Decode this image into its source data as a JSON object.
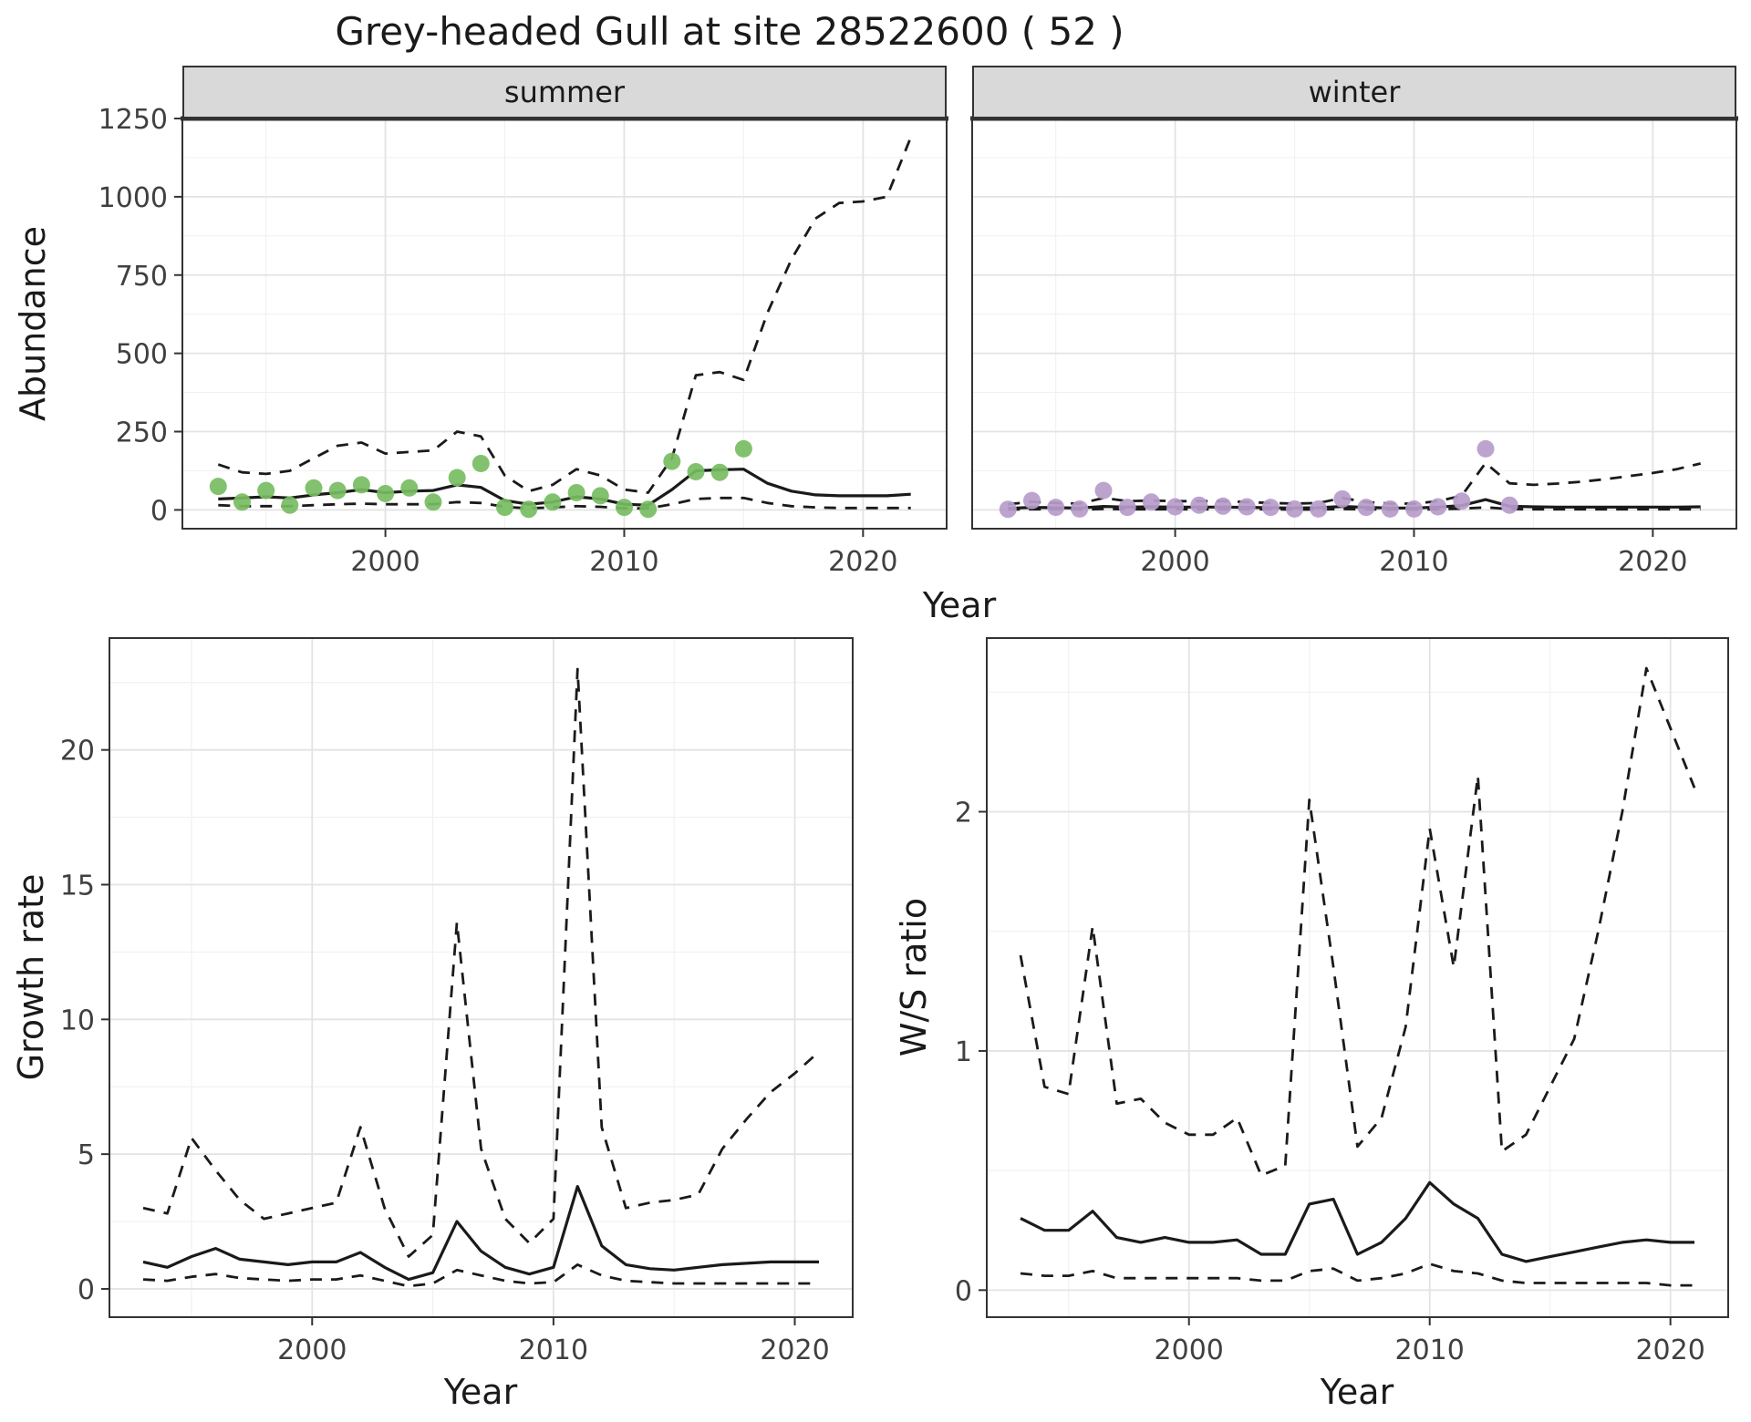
{
  "chart_data": {
    "type": "line",
    "title": "Grey-headed Gull at site 28522600 ( 52 )",
    "facets": [
      "summer",
      "winter"
    ],
    "xlabel": "Year",
    "legend": "none",
    "grid": "on",
    "panels": [
      {
        "id": "summer",
        "facet": "summer",
        "ylabel": "Abundance",
        "xlim": [
          1991.5,
          2023.5
        ],
        "ylim": [
          -60,
          1250
        ],
        "xticks": [
          2000,
          2010,
          2020
        ],
        "yticks": [
          0,
          250,
          500,
          750,
          1000,
          1250
        ],
        "x": [
          1993,
          1994,
          1995,
          1996,
          1997,
          1998,
          1999,
          2000,
          2001,
          2002,
          2003,
          2004,
          2005,
          2006,
          2007,
          2008,
          2009,
          2010,
          2011,
          2012,
          2013,
          2014,
          2015,
          2016,
          2017,
          2018,
          2019,
          2020,
          2021,
          2022
        ],
        "series": [
          {
            "name": "upper-ci",
            "style": "dashed",
            "values": [
              145,
              120,
              115,
              125,
              165,
              205,
              215,
              180,
              185,
              190,
              250,
              235,
              110,
              60,
              80,
              130,
              110,
              65,
              55,
              165,
              430,
              440,
              415,
              630,
              800,
              930,
              980,
              985,
              1000,
              1190
            ]
          },
          {
            "name": "fit",
            "style": "solid",
            "values": [
              35,
              38,
              42,
              38,
              48,
              55,
              65,
              55,
              60,
              62,
              80,
              72,
              30,
              18,
              25,
              42,
              35,
              18,
              15,
              65,
              125,
              128,
              130,
              85,
              60,
              48,
              45,
              45,
              45,
              50
            ]
          },
          {
            "name": "lower-ci",
            "style": "dashed",
            "values": [
              15,
              12,
              12,
              12,
              15,
              18,
              20,
              18,
              18,
              18,
              25,
              22,
              10,
              5,
              8,
              12,
              10,
              5,
              5,
              18,
              35,
              38,
              38,
              22,
              12,
              8,
              6,
              6,
              6,
              6
            ]
          }
        ],
        "points": {
          "name": "observed-counts",
          "color": "#77BD62",
          "x": [
            1993,
            1994,
            1995,
            1996,
            1997,
            1998,
            1999,
            2000,
            2001,
            2002,
            2003,
            2004,
            2005,
            2006,
            2007,
            2008,
            2009,
            2010,
            2011,
            2012,
            2013,
            2014,
            2015
          ],
          "y": [
            75,
            25,
            62,
            15,
            70,
            62,
            80,
            52,
            70,
            25,
            103,
            148,
            8,
            2,
            25,
            55,
            45,
            8,
            2,
            155,
            122,
            120,
            195
          ]
        }
      },
      {
        "id": "winter",
        "facet": "winter",
        "ylabel": "Abundance",
        "xlim": [
          1991.5,
          2023.5
        ],
        "ylim": [
          -60,
          1250
        ],
        "xticks": [
          2000,
          2010,
          2020
        ],
        "yticks": [
          0,
          250,
          500,
          750,
          1000,
          1250
        ],
        "x": [
          1993,
          1994,
          1995,
          1996,
          1997,
          1998,
          1999,
          2000,
          2001,
          2002,
          2003,
          2004,
          2005,
          2006,
          2007,
          2008,
          2009,
          2010,
          2011,
          2012,
          2013,
          2014,
          2015,
          2016,
          2017,
          2018,
          2019,
          2020,
          2021,
          2022
        ],
        "series": [
          {
            "name": "upper-ci",
            "style": "dashed",
            "values": [
              18,
              26,
              22,
              20,
              38,
              28,
              30,
              28,
              28,
              28,
              25,
              22,
              20,
              22,
              38,
              25,
              20,
              20,
              28,
              45,
              150,
              85,
              80,
              84,
              90,
              98,
              108,
              118,
              130,
              148
            ]
          },
          {
            "name": "fit",
            "style": "solid",
            "values": [
              5,
              8,
              7,
              6,
              11,
              9,
              10,
              9,
              9,
              9,
              8,
              7,
              6,
              7,
              11,
              8,
              6,
              6,
              9,
              14,
              33,
              12,
              10,
              9,
              9,
              9,
              9,
              9,
              9,
              10
            ]
          },
          {
            "name": "lower-ci",
            "style": "dashed",
            "values": [
              1,
              2,
              2,
              1,
              3,
              2,
              2,
              2,
              2,
              2,
              2,
              2,
              1,
              1,
              3,
              2,
              1,
              1,
              2,
              4,
              8,
              3,
              2,
              2,
              2,
              2,
              2,
              2,
              2,
              2
            ]
          }
        ],
        "points": {
          "name": "observed-counts",
          "color": "#B79CCB",
          "x": [
            1993,
            1994,
            1995,
            1996,
            1997,
            1998,
            1999,
            2000,
            2001,
            2002,
            2003,
            2004,
            2005,
            2006,
            2007,
            2008,
            2009,
            2010,
            2011,
            2012,
            2013,
            2014
          ],
          "y": [
            2,
            30,
            8,
            3,
            62,
            8,
            25,
            10,
            15,
            12,
            10,
            8,
            3,
            3,
            35,
            8,
            3,
            3,
            10,
            28,
            195,
            15
          ]
        }
      },
      {
        "id": "growth",
        "facet": "",
        "ylabel": "Growth rate",
        "xlim": [
          1991.6,
          2022.4
        ],
        "ylim": [
          -1.05,
          24.15
        ],
        "xticks": [
          2000,
          2010,
          2020
        ],
        "yticks": [
          0,
          5,
          10,
          15,
          20
        ],
        "x": [
          1993,
          1994,
          1995,
          1996,
          1997,
          1998,
          1999,
          2000,
          2001,
          2002,
          2003,
          2004,
          2005,
          2006,
          2007,
          2008,
          2009,
          2010,
          2011,
          2012,
          2013,
          2014,
          2015,
          2016,
          2017,
          2018,
          2019,
          2020,
          2021
        ],
        "series": [
          {
            "name": "upper-ci",
            "style": "dashed",
            "values": [
              3.0,
              2.8,
              5.6,
              4.4,
              3.3,
              2.6,
              2.8,
              3.0,
              3.2,
              6.0,
              3.0,
              1.2,
              2.0,
              13.6,
              5.2,
              2.6,
              1.7,
              2.6,
              23.0,
              6.0,
              3.0,
              3.2,
              3.3,
              3.5,
              5.2,
              6.3,
              7.3,
              8.0,
              8.8
            ]
          },
          {
            "name": "fit",
            "style": "solid",
            "values": [
              1.0,
              0.8,
              1.2,
              1.5,
              1.1,
              1.0,
              0.9,
              1.0,
              1.0,
              1.35,
              0.8,
              0.35,
              0.6,
              2.5,
              1.4,
              0.8,
              0.55,
              0.8,
              3.8,
              1.6,
              0.9,
              0.75,
              0.7,
              0.8,
              0.9,
              0.95,
              1.0,
              1.0,
              1.0
            ]
          },
          {
            "name": "lower-ci",
            "style": "dashed",
            "values": [
              0.35,
              0.3,
              0.45,
              0.55,
              0.4,
              0.35,
              0.3,
              0.35,
              0.35,
              0.5,
              0.3,
              0.1,
              0.2,
              0.7,
              0.5,
              0.3,
              0.2,
              0.25,
              0.9,
              0.5,
              0.3,
              0.25,
              0.2,
              0.2,
              0.2,
              0.2,
              0.2,
              0.2,
              0.2
            ]
          }
        ]
      },
      {
        "id": "ws",
        "facet": "",
        "ylabel": "W/S ratio",
        "xlim": [
          1991.6,
          2022.4
        ],
        "ylim": [
          -0.113,
          2.726
        ],
        "xticks": [
          2000,
          2010,
          2020
        ],
        "yticks": [
          0,
          1,
          2
        ],
        "x": [
          1993,
          1994,
          1995,
          1996,
          1997,
          1998,
          1999,
          2000,
          2001,
          2002,
          2003,
          2004,
          2005,
          2006,
          2007,
          2008,
          2009,
          2010,
          2011,
          2012,
          2013,
          2014,
          2015,
          2016,
          2017,
          2018,
          2019,
          2020,
          2021
        ],
        "series": [
          {
            "name": "upper-ci",
            "style": "dashed",
            "values": [
              1.4,
              0.85,
              0.82,
              1.52,
              0.78,
              0.8,
              0.7,
              0.65,
              0.65,
              0.72,
              0.48,
              0.52,
              2.05,
              1.35,
              0.6,
              0.72,
              1.1,
              1.93,
              1.35,
              2.15,
              0.58,
              0.65,
              0.85,
              1.05,
              1.5,
              2.0,
              2.6,
              2.35,
              2.1
            ]
          },
          {
            "name": "fit",
            "style": "solid",
            "values": [
              0.3,
              0.25,
              0.25,
              0.33,
              0.22,
              0.2,
              0.22,
              0.2,
              0.2,
              0.21,
              0.15,
              0.15,
              0.36,
              0.38,
              0.15,
              0.2,
              0.3,
              0.45,
              0.36,
              0.3,
              0.15,
              0.12,
              0.14,
              0.16,
              0.18,
              0.2,
              0.21,
              0.2,
              0.2
            ]
          },
          {
            "name": "lower-ci",
            "style": "dashed",
            "values": [
              0.07,
              0.06,
              0.06,
              0.08,
              0.05,
              0.05,
              0.05,
              0.05,
              0.05,
              0.05,
              0.04,
              0.04,
              0.08,
              0.09,
              0.04,
              0.05,
              0.07,
              0.11,
              0.08,
              0.07,
              0.04,
              0.03,
              0.03,
              0.03,
              0.03,
              0.03,
              0.03,
              0.02,
              0.02
            ]
          }
        ]
      }
    ]
  },
  "colors": {
    "line": "#1a1a1a",
    "summer_points": "#77BD62",
    "winter_points": "#B79CCB",
    "strip_bg": "#D9D9D9",
    "grid_major": "#E3E3E3",
    "grid_minor": "#F1F1F1",
    "border": "#333333",
    "tick_text": "#404040"
  }
}
